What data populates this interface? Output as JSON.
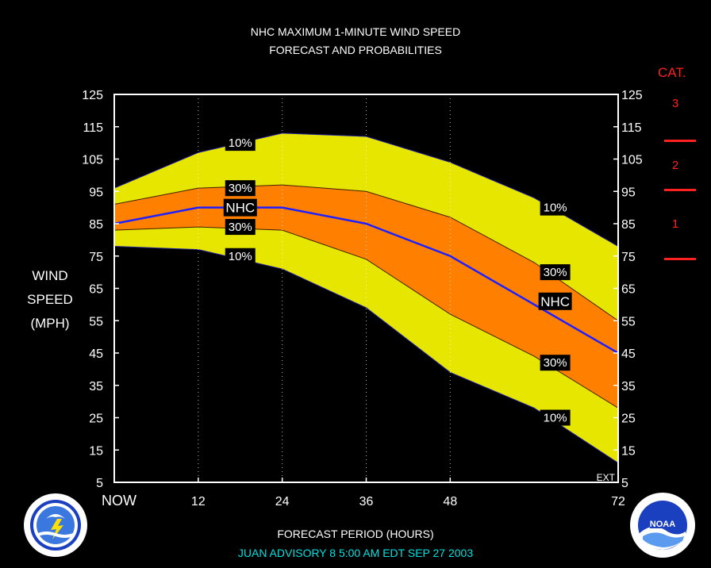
{
  "header": {
    "title_line1": "NHC MAXIMUM 1-MINUTE WIND SPEED",
    "title_line2": "FORECAST AND PROBABILITIES"
  },
  "ylabel": {
    "line1": "WIND",
    "line2": "SPEED",
    "line3": "(MPH)"
  },
  "category_panel": {
    "title": "CAT.",
    "labels": [
      "3",
      "2",
      "1"
    ],
    "color": "#ff2020"
  },
  "footer": {
    "xlabel": "FORECAST PERIOD (HOURS)",
    "advisory": "JUAN   ADVISORY  8 5:00  AM  EDT  SEP  27  2003"
  },
  "chart_data": {
    "type": "area",
    "title": "NHC MAXIMUM 1-MINUTE WIND SPEED FORECAST AND PROBABILITIES",
    "xlabel": "FORECAST PERIOD (HOURS)",
    "ylabel": "WIND SPEED (MPH)",
    "xlim": [
      0,
      72
    ],
    "ylim": [
      5,
      125
    ],
    "x_ticks": [
      0,
      12,
      24,
      36,
      48,
      72
    ],
    "x_tick_labels": [
      "NOW",
      "12",
      "24",
      "36",
      "48",
      "72"
    ],
    "y_ticks": [
      5,
      15,
      25,
      35,
      45,
      55,
      65,
      75,
      85,
      95,
      105,
      115,
      125
    ],
    "x": [
      0,
      12,
      24,
      36,
      48,
      60,
      72
    ],
    "series": [
      {
        "name": "NHC",
        "values": [
          85,
          90,
          90,
          85,
          75,
          60,
          45
        ],
        "color": "#2020ff"
      }
    ],
    "bands": [
      {
        "label": "10%",
        "upper": [
          96,
          107,
          113,
          112,
          104,
          93,
          78
        ],
        "lower": [
          78,
          77,
          71,
          59,
          39,
          28,
          11
        ],
        "color": "#e6e600"
      },
      {
        "label": "30%",
        "upper": [
          91,
          96,
          97,
          95,
          87,
          73,
          55
        ],
        "lower": [
          83,
          84,
          83,
          74,
          57,
          44,
          28
        ],
        "color": "#ff8000"
      }
    ],
    "labels": [
      {
        "text": "10%",
        "x": 18,
        "y": 110
      },
      {
        "text": "30%",
        "x": 18,
        "y": 96
      },
      {
        "text": "NHC",
        "x": 18,
        "y": 90
      },
      {
        "text": "30%",
        "x": 18,
        "y": 84
      },
      {
        "text": "10%",
        "x": 18,
        "y": 75
      },
      {
        "text": "10%",
        "x": 63,
        "y": 90
      },
      {
        "text": "30%",
        "x": 63,
        "y": 70
      },
      {
        "text": "NHC",
        "x": 63,
        "y": 61
      },
      {
        "text": "30%",
        "x": 63,
        "y": 42
      },
      {
        "text": "10%",
        "x": 63,
        "y": 25
      }
    ],
    "extension_label": "EXT",
    "grid": "vertical dotted at 12,24,36,48",
    "category_thresholds": [
      111,
      96,
      74
    ],
    "colors": {
      "background": "#000000",
      "plot_border": "#ffffff",
      "band_10": "#e6e600",
      "band_30": "#ff8000",
      "nhc_line": "#2020ff"
    }
  }
}
